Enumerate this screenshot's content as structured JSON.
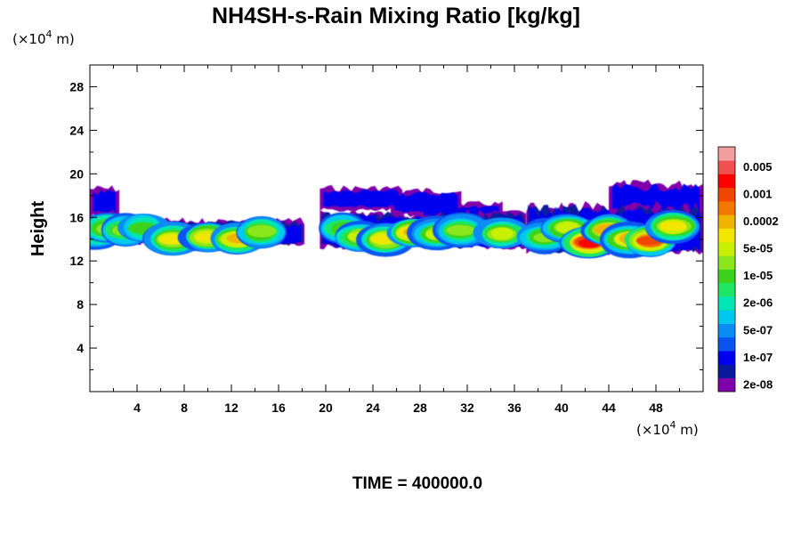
{
  "chart_data": {
    "type": "heatmap",
    "title": "NH4SH-s-Rain Mixing Ratio [kg/kg]",
    "ylabel": "Height",
    "x_unit": {
      "prefix": "(×10",
      "exp": "4",
      "suffix": " m)"
    },
    "y_unit": {
      "prefix": "(×10",
      "exp": "4",
      "suffix": " m)"
    },
    "xlim": [
      0,
      52
    ],
    "ylim": [
      0,
      30
    ],
    "x_ticks": [
      4,
      8,
      12,
      16,
      20,
      24,
      28,
      32,
      36,
      40,
      44,
      48
    ],
    "y_ticks": [
      4,
      8,
      12,
      16,
      20,
      24,
      28
    ],
    "colorbar": {
      "colors": [
        "#7f00aa",
        "#0a1a9e",
        "#0000ee",
        "#0a55f0",
        "#0a8cf5",
        "#00c8ee",
        "#00e6b4",
        "#1ee664",
        "#3cd21e",
        "#8ce61e",
        "#c8f000",
        "#f0e600",
        "#f0b400",
        "#f07800",
        "#f04600",
        "#ff0000",
        "#f05050",
        "#f0a0a0"
      ],
      "labels": [
        "2e-08",
        "1e-07",
        "5e-07",
        "2e-06",
        "1e-05",
        "5e-05",
        "0.0002",
        "0.001",
        "0.005"
      ]
    },
    "field": {
      "description_layer_bottom_top": [
        13.0,
        16.0
      ],
      "blobs": [
        {
          "x": 0.5,
          "y": 14.5,
          "level": 8
        },
        {
          "x": 1.5,
          "y": 15.0,
          "level": 9
        },
        {
          "x": 3.0,
          "y": 14.8,
          "level": 9
        },
        {
          "x": 4.5,
          "y": 15.0,
          "level": 8
        },
        {
          "x": 7.0,
          "y": 14.0,
          "level": 11
        },
        {
          "x": 10.0,
          "y": 14.2,
          "level": 11
        },
        {
          "x": 12.5,
          "y": 14.0,
          "level": 12
        },
        {
          "x": 14.5,
          "y": 14.7,
          "level": 9
        },
        {
          "x": 21.5,
          "y": 15.0,
          "level": 8
        },
        {
          "x": 23.0,
          "y": 14.2,
          "level": 10
        },
        {
          "x": 25.0,
          "y": 14.0,
          "level": 11
        },
        {
          "x": 27.5,
          "y": 14.6,
          "level": 12
        },
        {
          "x": 29.5,
          "y": 14.5,
          "level": 10
        },
        {
          "x": 31.5,
          "y": 14.8,
          "level": 9
        },
        {
          "x": 35.0,
          "y": 14.5,
          "level": 10
        },
        {
          "x": 38.5,
          "y": 14.2,
          "level": 9
        },
        {
          "x": 40.5,
          "y": 15.0,
          "level": 10
        },
        {
          "x": 42.3,
          "y": 13.7,
          "level": 15
        },
        {
          "x": 44.0,
          "y": 14.8,
          "level": 12
        },
        {
          "x": 45.8,
          "y": 14.0,
          "level": 12
        },
        {
          "x": 47.5,
          "y": 13.9,
          "level": 14
        },
        {
          "x": 49.5,
          "y": 15.2,
          "level": 11
        }
      ]
    }
  },
  "footer": {
    "time_label": "TIME = 400000.0"
  }
}
